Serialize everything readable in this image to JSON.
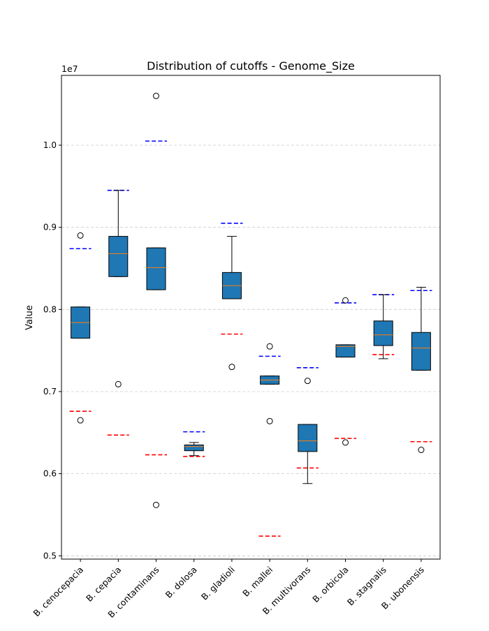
{
  "chart_data": {
    "type": "box",
    "title": "Distribution of cutoffs - Genome_Size",
    "xlabel": "",
    "ylabel": "Value",
    "y_offset_label": "1e7",
    "ylim": [
      4960000,
      10850000
    ],
    "yticks": [
      5000000,
      6000000,
      7000000,
      8000000,
      9000000,
      10000000
    ],
    "ytick_labels": [
      "0.5",
      "0.6",
      "0.7",
      "0.8",
      "0.9",
      "1.0"
    ],
    "grid": "horizontal-dashed",
    "colors": {
      "box_fill": "#1f77b4",
      "median": "#ff7f0e",
      "upper_cutoff": "#0000ff",
      "lower_cutoff": "#ff0000",
      "grid": "#cccccc"
    },
    "categories": [
      "B. cenocepacia",
      "B. cepacia",
      "B. contaminans",
      "B. dolosa",
      "B. gladioli",
      "B. mallei",
      "B. multivorans",
      "B. orbicola",
      "B. stagnalis",
      "B. ubonensis"
    ],
    "boxes": [
      {
        "whislo": 7650000,
        "q1": 7650000,
        "med": 7840000,
        "q3": 8030000,
        "whishi": 8030000,
        "fliers": [
          8900000,
          6650000
        ]
      },
      {
        "whislo": 8400000,
        "q1": 8400000,
        "med": 8680000,
        "q3": 8890000,
        "whishi": 9450000,
        "fliers": [
          7090000
        ]
      },
      {
        "whislo": 8240000,
        "q1": 8240000,
        "med": 8510000,
        "q3": 8750000,
        "whishi": 8750000,
        "fliers": [
          10600000,
          5620000
        ]
      },
      {
        "whislo": 6220000,
        "q1": 6280000,
        "med": 6330000,
        "q3": 6350000,
        "whishi": 6380000,
        "fliers": []
      },
      {
        "whislo": 8130000,
        "q1": 8130000,
        "med": 8290000,
        "q3": 8450000,
        "whishi": 8890000,
        "fliers": [
          7300000
        ]
      },
      {
        "whislo": 7090000,
        "q1": 7090000,
        "med": 7140000,
        "q3": 7190000,
        "whishi": 7190000,
        "fliers": [
          7550000,
          6640000
        ]
      },
      {
        "whislo": 5880000,
        "q1": 6270000,
        "med": 6400000,
        "q3": 6600000,
        "whishi": 6600000,
        "fliers": [
          7130000
        ]
      },
      {
        "whislo": 7420000,
        "q1": 7420000,
        "med": 7550000,
        "q3": 7570000,
        "whishi": 7570000,
        "fliers": [
          8110000,
          6380000
        ]
      },
      {
        "whislo": 7400000,
        "q1": 7560000,
        "med": 7690000,
        "q3": 7860000,
        "whishi": 8180000,
        "fliers": []
      },
      {
        "whislo": 7260000,
        "q1": 7260000,
        "med": 7530000,
        "q3": 7720000,
        "whishi": 8270000,
        "fliers": [
          6290000
        ]
      }
    ],
    "upper_cutoffs": [
      8740000,
      9450000,
      10050000,
      6510000,
      9050000,
      7430000,
      7290000,
      8080000,
      8180000,
      8230000
    ],
    "lower_cutoffs": [
      6760000,
      6470000,
      6230000,
      6210000,
      7700000,
      5240000,
      6070000,
      6430000,
      7450000,
      6390000
    ]
  }
}
